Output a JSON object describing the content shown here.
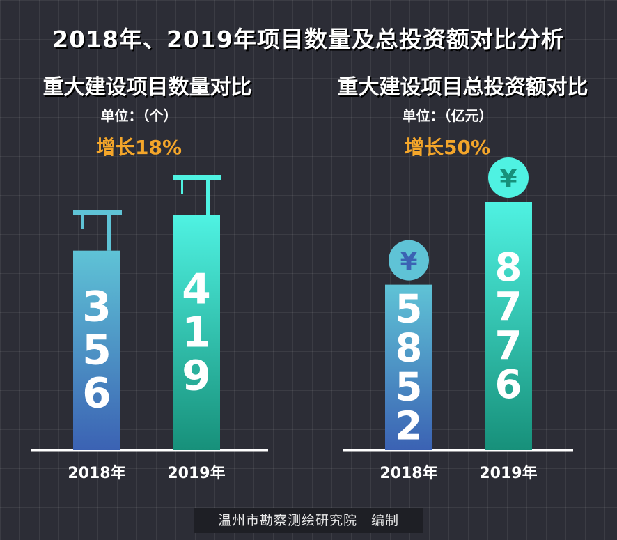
{
  "title": "2018年、2019年项目数量及总投资额对比分析",
  "footer": "温州市勘察测绘研究院　编制",
  "chart_data": [
    {
      "type": "bar",
      "title": "重大建设项目数量对比",
      "unit": "单位：（个）",
      "growth": "增长18%",
      "categories": [
        "2018年",
        "2019年"
      ],
      "values": [
        356,
        419
      ],
      "icon": "crane-icon",
      "colors": {
        "top_2018": "#5fc3d6",
        "bottom_2018": "#3b62b3",
        "top_2019": "#4ff2e2",
        "bottom_2019": "#17907a"
      }
    },
    {
      "type": "bar",
      "title": "重大建设项目总投资额对比",
      "unit": "单位：（亿元）",
      "growth": "增长50%",
      "categories": [
        "2018年",
        "2019年"
      ],
      "values": [
        5852,
        8776
      ],
      "icon": "yuan-coin-icon",
      "colors": {
        "top_2018": "#5fc3d6",
        "bottom_2018": "#3b62b3",
        "top_2019": "#4ff2e2",
        "bottom_2019": "#17907a"
      }
    }
  ]
}
